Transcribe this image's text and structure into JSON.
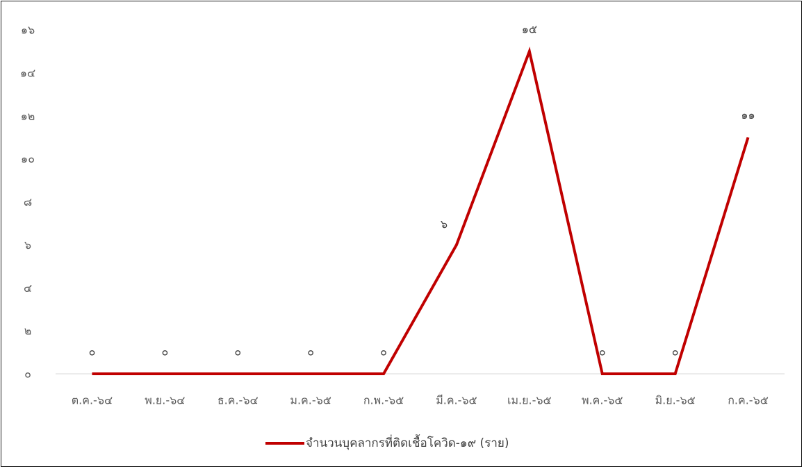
{
  "chart_data": {
    "type": "line",
    "categories": [
      "ต.ค.-๖๔",
      "พ.ย.-๖๔",
      "ธ.ค.-๖๔",
      "ม.ค.-๖๕",
      "ก.พ.-๖๕",
      "มี.ค.-๖๕",
      "เม.ย.-๖๕",
      "พ.ค.-๖๕",
      "มิ.ย.-๖๕",
      "ก.ค.-๖๕"
    ],
    "series": [
      {
        "name": "จำนวนบุคลากรที่ติดเชื้อโควิด-๑๙ (ราย)",
        "values": [
          0,
          0,
          0,
          0,
          0,
          6,
          15,
          0,
          0,
          11
        ],
        "data_labels": [
          "๐",
          "๐",
          "๐",
          "๐",
          "๐",
          "๖",
          "๑๕",
          "๐",
          "๐",
          "๑๑"
        ],
        "color": "#c00000"
      }
    ],
    "y_ticks": [
      0,
      2,
      4,
      6,
      8,
      10,
      12,
      14,
      16
    ],
    "y_tick_labels": [
      "๐",
      "๒",
      "๔",
      "๖",
      "๘",
      "๑๐",
      "๑๒",
      "๑๔",
      "๑๖"
    ],
    "ylim": [
      0,
      16
    ],
    "grid": false,
    "legend_position": "bottom",
    "title": "",
    "xlabel": "",
    "ylabel": ""
  }
}
